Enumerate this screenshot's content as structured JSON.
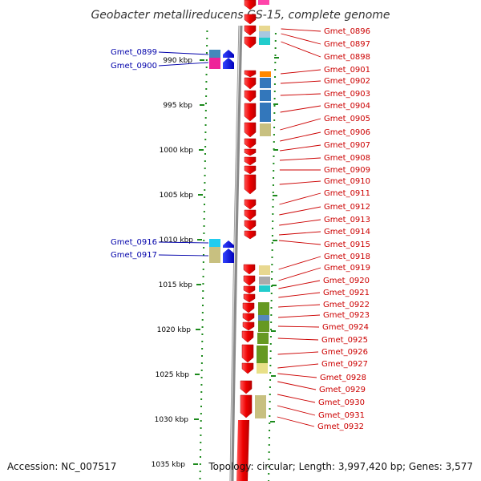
{
  "title": "Geobacter metallireducens GS-15, complete genome",
  "footer": {
    "accession": "Accession: NC_007517",
    "topology": "Topology: circular; Length: 3,997,420 bp; Genes: 3,577"
  },
  "scale": {
    "ticks": [
      "990 kbp",
      "995 kbp",
      "1000 kbp",
      "1005 kbp",
      "1010 kbp",
      "1015 kbp",
      "1020 kbp",
      "1025 kbp",
      "1030 kbp",
      "1035 kbp"
    ]
  },
  "genes_left": [
    "Gmet_0899",
    "Gmet_0900",
    "Gmet_0916",
    "Gmet_0917"
  ],
  "genes_right": [
    "Gmet_0896",
    "Gmet_0897",
    "Gmet_0898",
    "Gmet_0901",
    "Gmet_0902",
    "Gmet_0903",
    "Gmet_0904",
    "Gmet_0905",
    "Gmet_0906",
    "Gmet_0907",
    "Gmet_0908",
    "Gmet_0909",
    "Gmet_0910",
    "Gmet_0911",
    "Gmet_0912",
    "Gmet_0913",
    "Gmet_0914",
    "Gmet_0915",
    "Gmet_0918",
    "Gmet_0919",
    "Gmet_0920",
    "Gmet_0921",
    "Gmet_0922",
    "Gmet_0923",
    "Gmet_0924",
    "Gmet_0925",
    "Gmet_0926",
    "Gmet_0927",
    "Gmet_0928",
    "Gmet_0929",
    "Gmet_0930",
    "Gmet_0931",
    "Gmet_0932"
  ],
  "colors": {
    "reverse_strand": "#ee1111",
    "forward_strand": "#0000ee",
    "label_right": "#cc0000",
    "label_left": "#0000aa",
    "scale_dots": "#228822",
    "backbone": "#888888"
  }
}
